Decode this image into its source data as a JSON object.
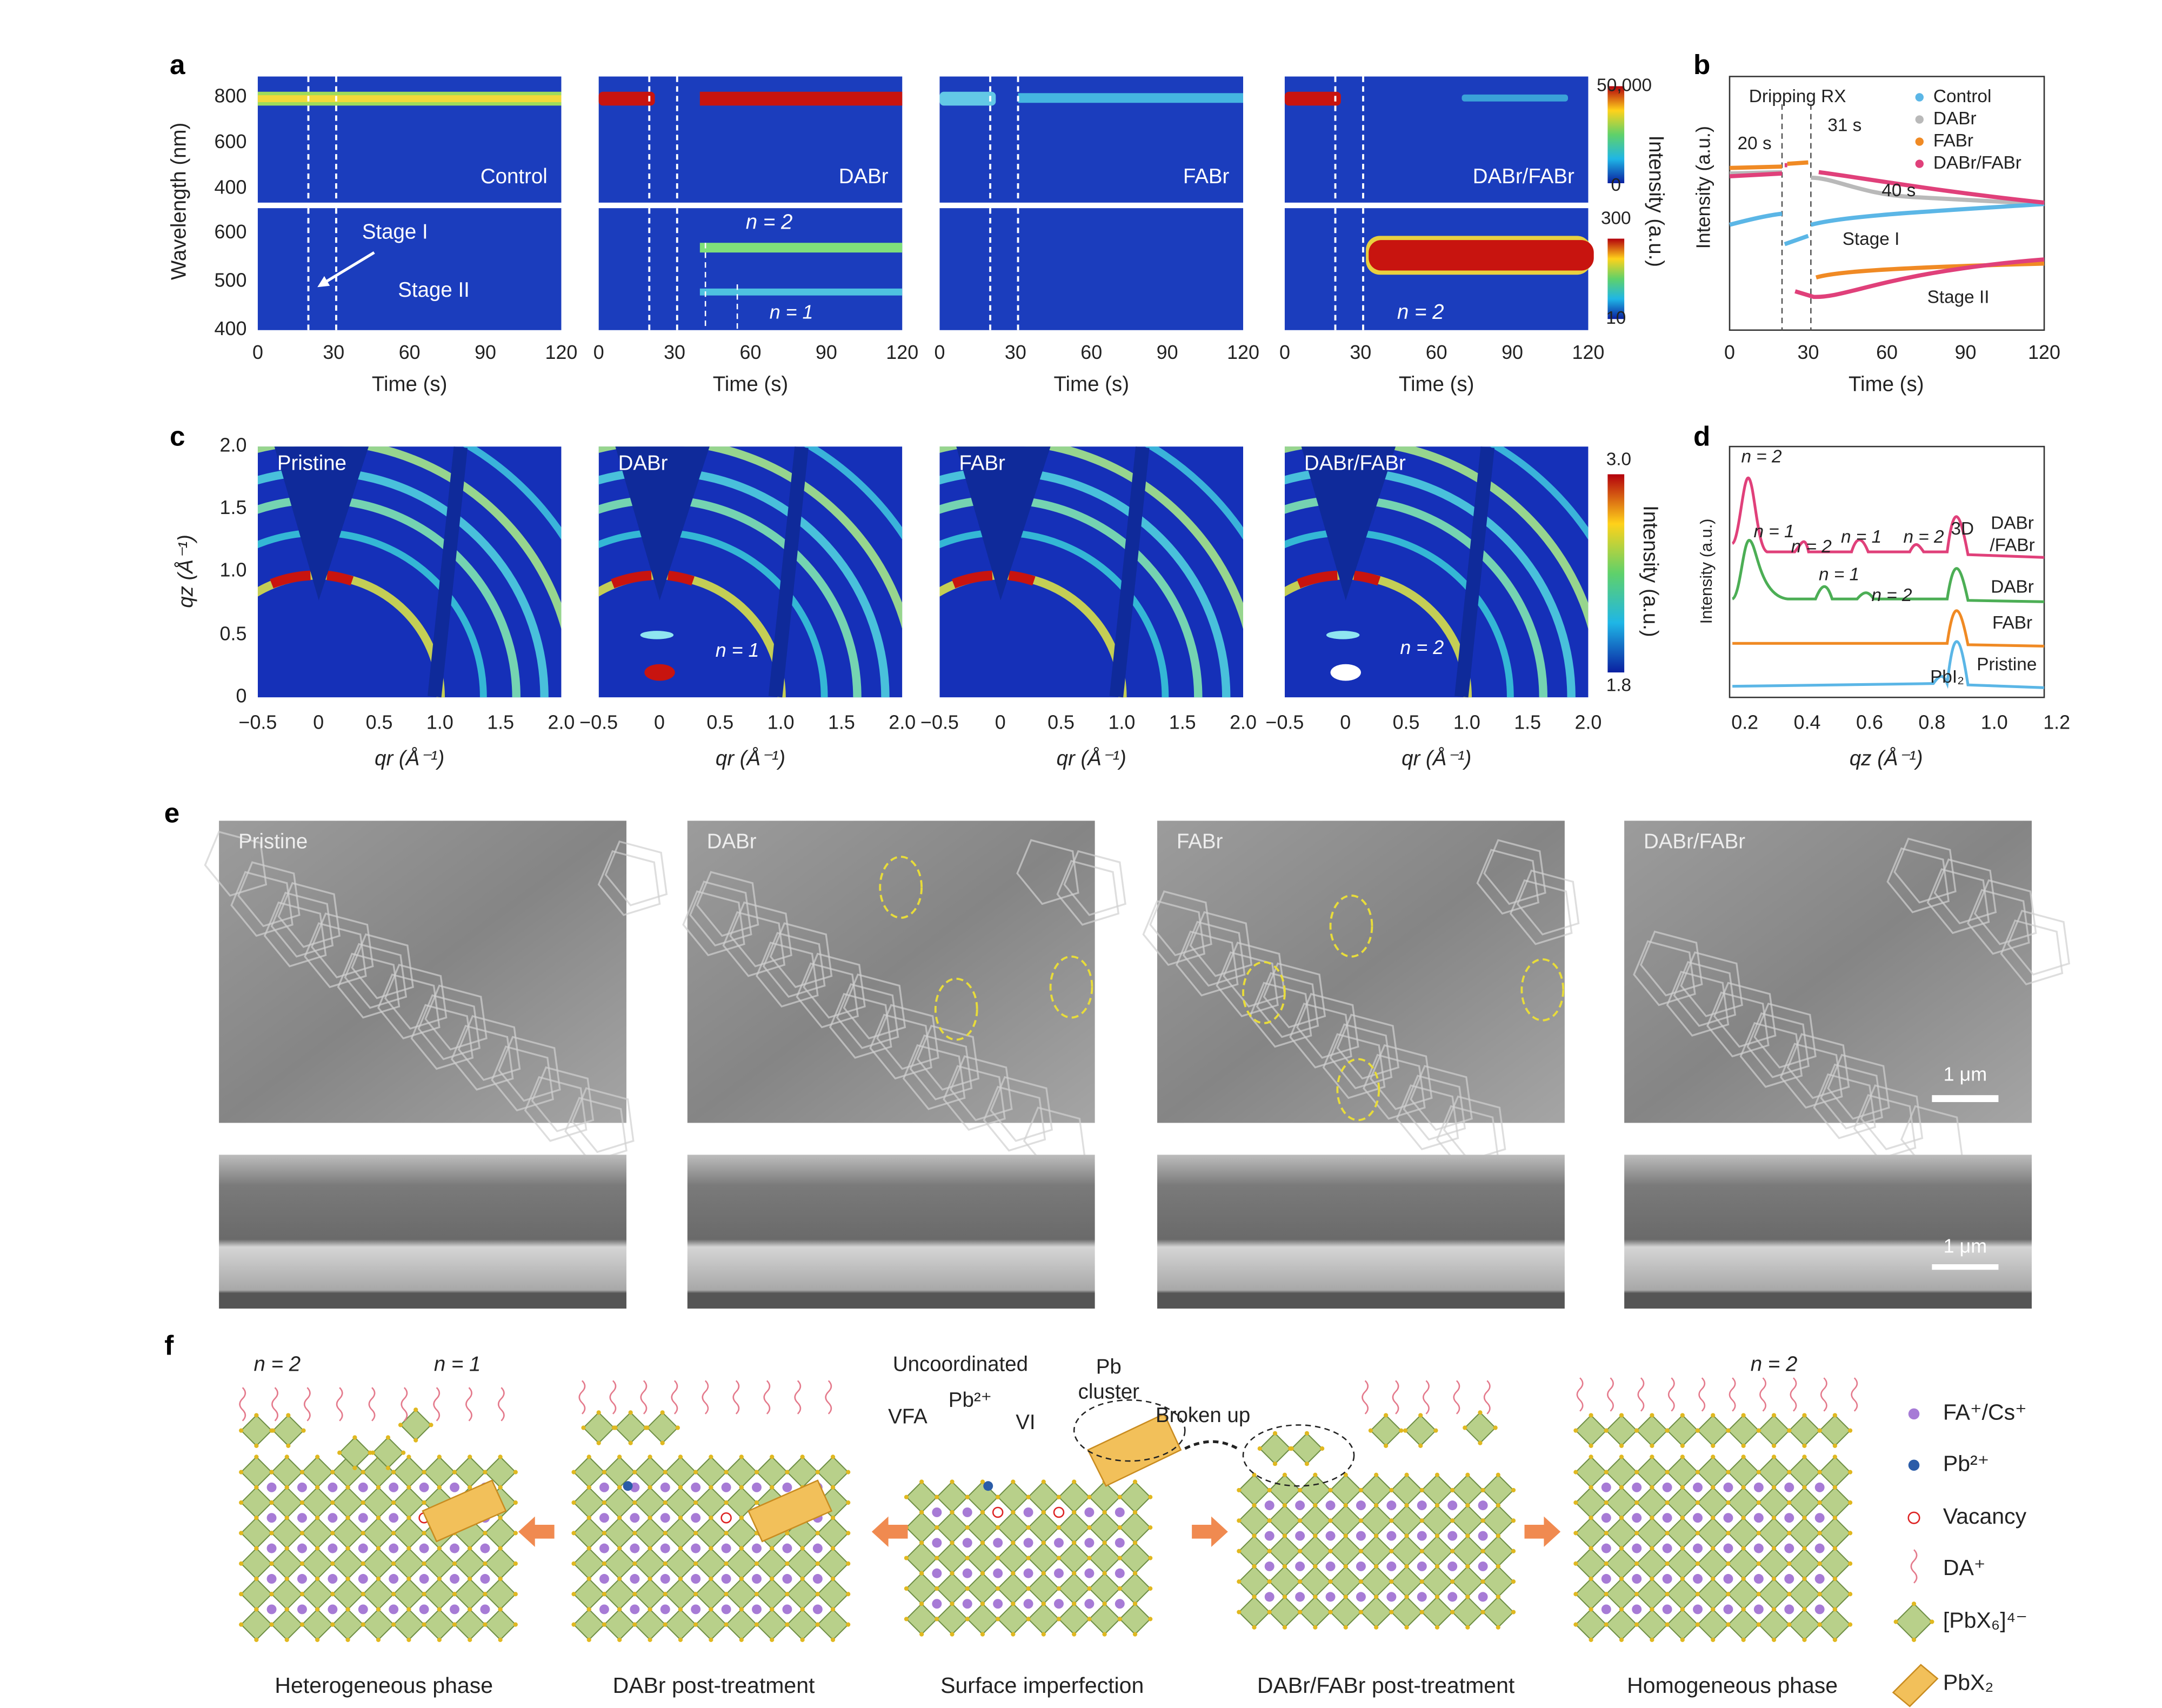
{
  "panel_labels": [
    "a",
    "b",
    "c",
    "d",
    "e",
    "f"
  ],
  "a": {
    "y_label": "Wavelength (nm)",
    "x_label": "Time (s)",
    "xticks": [
      0,
      30,
      60,
      90,
      120
    ],
    "yticks_top": [
      800,
      600,
      400
    ],
    "yticks_bottom": [
      600,
      500,
      400
    ],
    "panels": [
      "Control",
      "DABr",
      "FABr",
      "DABr/FABr"
    ],
    "stage1": "Stage I",
    "stage2": "Stage II",
    "n2": "n = 2",
    "n1": "n = 1",
    "n2_right": "n = 2",
    "colorbar_label": "Intensity (a.u.)",
    "colorbar_top": [
      "50,000",
      "0"
    ],
    "colorbar_bottom": [
      "300",
      "10"
    ]
  },
  "b": {
    "y_label": "Intensity (a.u.)",
    "x_label": "Time (s)",
    "xticks": [
      0,
      30,
      60,
      90,
      120
    ],
    "legend": [
      "Control",
      "DABr",
      "FABr",
      "DABr/FABr"
    ],
    "annotations": [
      "Dripping RX",
      "20 s",
      "31 s",
      "40 s",
      "Stage I",
      "Stage II"
    ]
  },
  "c": {
    "y_label": "qz (Å⁻¹)",
    "x_label": "qr (Å⁻¹)",
    "yticks": [
      "2.0",
      "1.5",
      "1.0",
      "0.5",
      "0"
    ],
    "xticks": [
      "−0.5",
      "0",
      "0.5",
      "1.0",
      "1.5",
      "2.0"
    ],
    "panels": [
      "Pristine",
      "DABr",
      "FABr",
      "DABr/FABr"
    ],
    "n1": "n = 1",
    "n2": "n = 2",
    "colorbar_label": "Intensity (a.u.)",
    "colorbar": [
      "3.0",
      "1.8"
    ]
  },
  "d": {
    "y_label": "Intensity (a.u.)",
    "x_label": "qz (Å⁻¹)",
    "xticks": [
      "0.2",
      "0.4",
      "0.6",
      "0.8",
      "1.0",
      "1.2"
    ],
    "peaks": [
      "n = 2",
      "n = 1",
      "n = 2",
      "n = 1",
      "n = 2",
      "n = 1",
      "n = 2",
      "3D",
      "PbI₂"
    ],
    "curves": [
      "DABr",
      "/FABr",
      "DABr",
      "FABr",
      "Pristine"
    ]
  },
  "e": {
    "panels": [
      "Pristine",
      "DABr",
      "FABr",
      "DABr/FABr"
    ],
    "scale_bars": [
      "1 μm",
      "1 μm"
    ]
  },
  "f": {
    "labels": [
      "n = 2",
      "n = 1",
      "Uncoordinated",
      "Pb",
      "cluster",
      "Pb²⁺",
      "VFA",
      "VI",
      "Broken up",
      "n = 2"
    ],
    "captions": [
      "Heterogeneous phase",
      "DABr post-treatment",
      "Surface imperfection",
      "DABr/FABr post-treatment",
      "Homogeneous phase"
    ],
    "legend": [
      "FA⁺/Cs⁺",
      "Pb²⁺",
      "Vacancy",
      "DA⁺",
      "[PbX₆]⁴⁻",
      "PbX₂"
    ]
  }
}
